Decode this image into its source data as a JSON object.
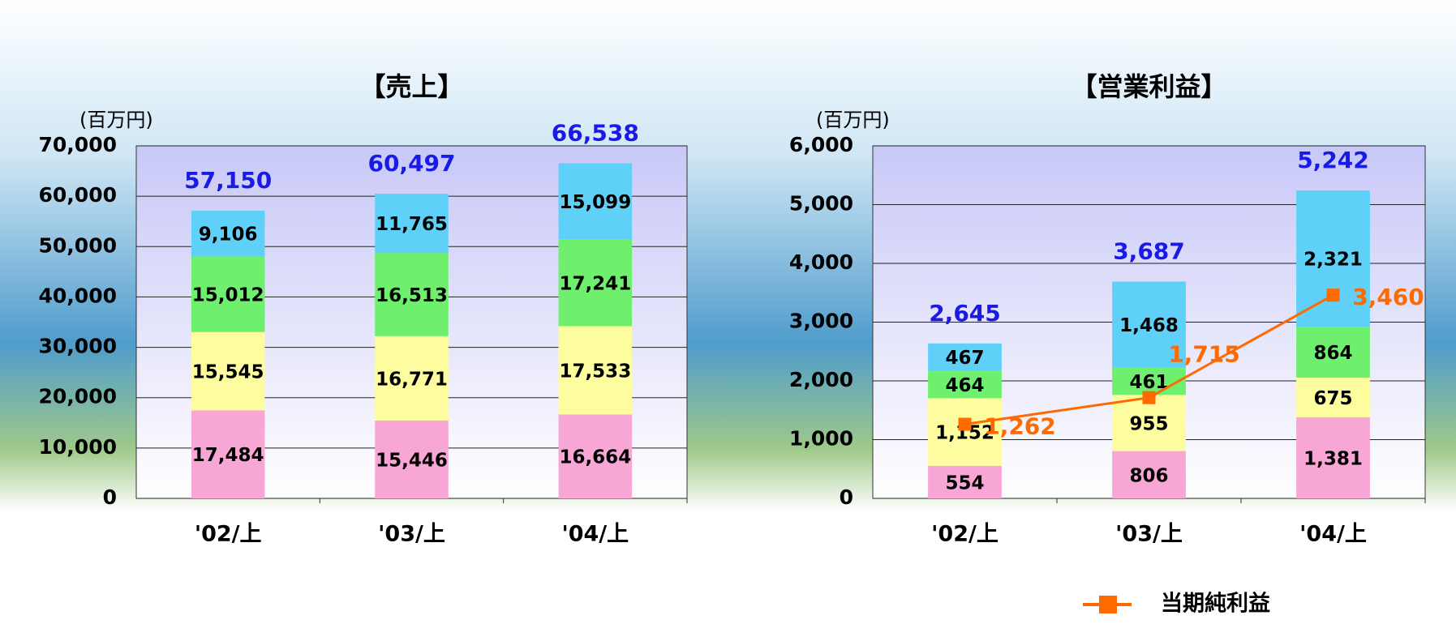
{
  "chart_data": [
    {
      "type": "stacked_bar",
      "title": "【売上】",
      "unit_label": "(百万円)",
      "categories": [
        "'02/上",
        "'03/上",
        "'04/上"
      ],
      "series": [
        {
          "color": "#f7a6d6",
          "values": [
            17484,
            15446,
            16664
          ],
          "value_labels": [
            "17,484",
            "15,446",
            "16,664"
          ]
        },
        {
          "color": "#fdfda0",
          "values": [
            15545,
            16771,
            17533
          ],
          "value_labels": [
            "15,545",
            "16,771",
            "17,533"
          ]
        },
        {
          "color": "#6ef06e",
          "values": [
            15012,
            16513,
            17241
          ],
          "value_labels": [
            "15,012",
            "16,513",
            "17,241"
          ]
        },
        {
          "color": "#5fd0f7",
          "values": [
            9106,
            11765,
            15099
          ],
          "value_labels": [
            "9,106",
            "11,765",
            "15,099"
          ]
        }
      ],
      "totals": [
        57150,
        60497,
        66538
      ],
      "total_labels": [
        "57,150",
        "60,497",
        "66,538"
      ],
      "ylim": [
        0,
        70000
      ],
      "yticks": [
        0,
        {
          "value": 10000,
          "label": "10,000"
        },
        {
          "value": 20000,
          "label": "20,000"
        },
        {
          "value": 30000,
          "label": "30,000"
        },
        {
          "value": 40000,
          "label": "40,000"
        },
        {
          "value": 50000,
          "label": "50,000"
        },
        {
          "value": 60000,
          "label": "60,000"
        },
        {
          "value": 70000,
          "label": "70,000"
        }
      ],
      "grid": true
    },
    {
      "type": "stacked_bar",
      "title": "【営業利益】",
      "unit_label": "(百万円)",
      "categories": [
        "'02/上",
        "'03/上",
        "'04/上"
      ],
      "series": [
        {
          "color": "#f7a6d6",
          "values": [
            554,
            806,
            1381
          ],
          "value_labels": [
            "554",
            "806",
            "1,381"
          ]
        },
        {
          "color": "#fdfda0",
          "values": [
            1152,
            955,
            675
          ],
          "value_labels": [
            "1,152",
            "955",
            "675"
          ]
        },
        {
          "color": "#6ef06e",
          "values": [
            464,
            461,
            864
          ],
          "value_labels": [
            "464",
            "461",
            "864"
          ]
        },
        {
          "color": "#5fd0f7",
          "values": [
            467,
            1468,
            2321
          ],
          "value_labels": [
            "467",
            "1,468",
            "2,321"
          ]
        }
      ],
      "totals": [
        2645,
        3687,
        5242
      ],
      "total_labels": [
        "2,645",
        "3,687",
        "5,242"
      ],
      "line": {
        "name": "当期純利益",
        "color": "#ff6a00",
        "values": [
          1262,
          1715,
          3460
        ],
        "value_labels": [
          "1,262",
          "1,715",
          "3,460"
        ]
      },
      "ylim": [
        0,
        6000
      ],
      "yticks": [
        0,
        {
          "value": 1000,
          "label": "1,000"
        },
        {
          "value": 2000,
          "label": "2,000"
        },
        {
          "value": 3000,
          "label": "3,000"
        },
        {
          "value": 4000,
          "label": "4,000"
        },
        {
          "value": 5000,
          "label": "5,000"
        },
        {
          "value": 6000,
          "label": "6,000"
        }
      ],
      "grid": true,
      "legend": "bottom-right"
    }
  ]
}
